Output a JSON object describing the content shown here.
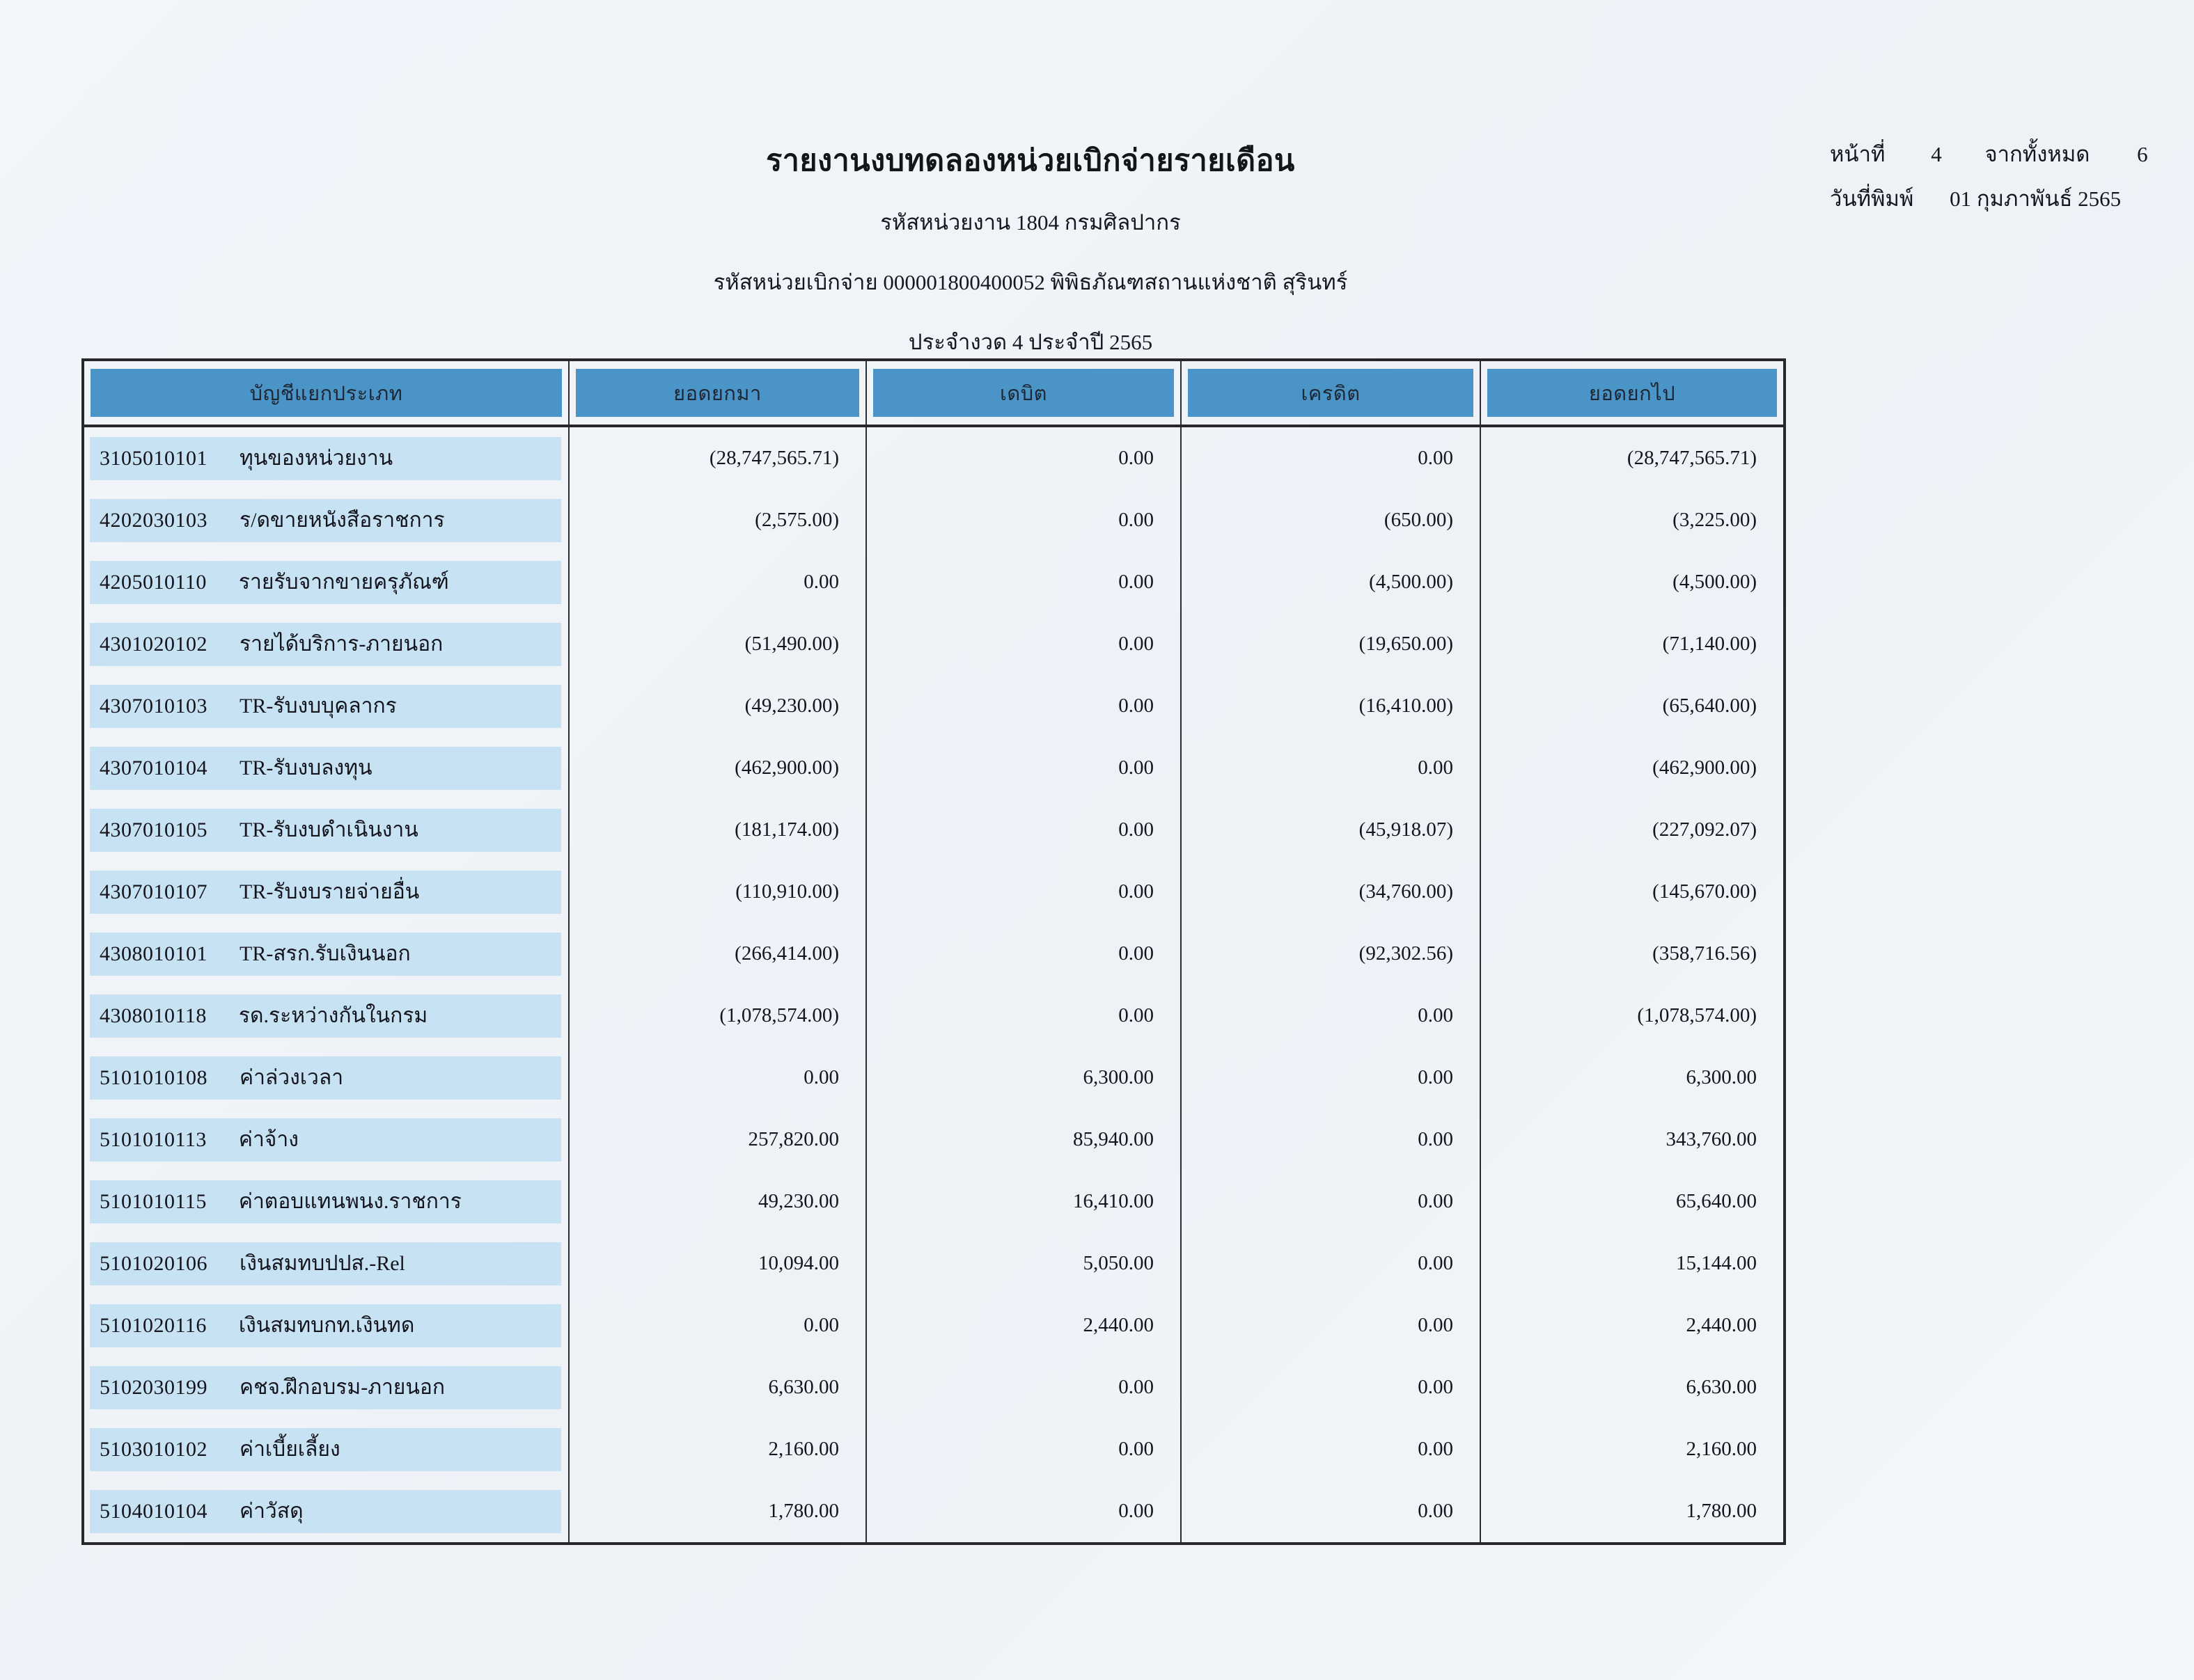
{
  "header": {
    "title": "รายงานงบทดลองหน่วยเบิกจ่ายรายเดือน",
    "agency_line": "รหัสหน่วยงาน 1804 กรมศิลปากร",
    "unit_line": "รหัสหน่วยเบิกจ่าย 000001800400052 พิพิธภัณฑสถานแห่งชาติ สุรินทร์",
    "period_line": "ประจำงวด 4 ประจำปี 2565"
  },
  "page_info": {
    "page_label": "หน้าที่",
    "page_number": "4",
    "total_label": "จากทั้งหมด",
    "total_pages": "6",
    "print_date_label": "วันที่พิมพ์",
    "print_date": "01 กุมภาพันธ์ 2565"
  },
  "table": {
    "columns": [
      "บัญชีแยกประเภท",
      "ยอดยกมา",
      "เดบิต",
      "เครดิต",
      "ยอดยกไป"
    ],
    "rows": [
      {
        "code": "3105010101",
        "name": "ทุนของหน่วยงาน",
        "brought_forward": "(28,747,565.71)",
        "debit": "0.00",
        "credit": "0.00",
        "carried_forward": "(28,747,565.71)"
      },
      {
        "code": "4202030103",
        "name": "ร/ดขายหนังสือราชการ",
        "brought_forward": "(2,575.00)",
        "debit": "0.00",
        "credit": "(650.00)",
        "carried_forward": "(3,225.00)"
      },
      {
        "code": "4205010110",
        "name": "รายรับจากขายครุภัณฑ์",
        "brought_forward": "0.00",
        "debit": "0.00",
        "credit": "(4,500.00)",
        "carried_forward": "(4,500.00)"
      },
      {
        "code": "4301020102",
        "name": "รายได้บริการ-ภายนอก",
        "brought_forward": "(51,490.00)",
        "debit": "0.00",
        "credit": "(19,650.00)",
        "carried_forward": "(71,140.00)"
      },
      {
        "code": "4307010103",
        "name": "TR-รับงบบุคลากร",
        "brought_forward": "(49,230.00)",
        "debit": "0.00",
        "credit": "(16,410.00)",
        "carried_forward": "(65,640.00)"
      },
      {
        "code": "4307010104",
        "name": "TR-รับงบลงทุน",
        "brought_forward": "(462,900.00)",
        "debit": "0.00",
        "credit": "0.00",
        "carried_forward": "(462,900.00)"
      },
      {
        "code": "4307010105",
        "name": "TR-รับงบดำเนินงาน",
        "brought_forward": "(181,174.00)",
        "debit": "0.00",
        "credit": "(45,918.07)",
        "carried_forward": "(227,092.07)"
      },
      {
        "code": "4307010107",
        "name": "TR-รับงบรายจ่ายอื่น",
        "brought_forward": "(110,910.00)",
        "debit": "0.00",
        "credit": "(34,760.00)",
        "carried_forward": "(145,670.00)"
      },
      {
        "code": "4308010101",
        "name": "TR-สรก.รับเงินนอก",
        "brought_forward": "(266,414.00)",
        "debit": "0.00",
        "credit": "(92,302.56)",
        "carried_forward": "(358,716.56)"
      },
      {
        "code": "4308010118",
        "name": "รด.ระหว่างกันในกรม",
        "brought_forward": "(1,078,574.00)",
        "debit": "0.00",
        "credit": "0.00",
        "carried_forward": "(1,078,574.00)"
      },
      {
        "code": "5101010108",
        "name": "ค่าล่วงเวลา",
        "brought_forward": "0.00",
        "debit": "6,300.00",
        "credit": "0.00",
        "carried_forward": "6,300.00"
      },
      {
        "code": "5101010113",
        "name": "ค่าจ้าง",
        "brought_forward": "257,820.00",
        "debit": "85,940.00",
        "credit": "0.00",
        "carried_forward": "343,760.00"
      },
      {
        "code": "5101010115",
        "name": "ค่าตอบแทนพนง.ราชการ",
        "brought_forward": "49,230.00",
        "debit": "16,410.00",
        "credit": "0.00",
        "carried_forward": "65,640.00"
      },
      {
        "code": "5101020106",
        "name": "เงินสมทบปปส.-Rel",
        "brought_forward": "10,094.00",
        "debit": "5,050.00",
        "credit": "0.00",
        "carried_forward": "15,144.00"
      },
      {
        "code": "5101020116",
        "name": "เงินสมทบกท.เงินทด",
        "brought_forward": "0.00",
        "debit": "2,440.00",
        "credit": "0.00",
        "carried_forward": "2,440.00"
      },
      {
        "code": "5102030199",
        "name": "คชจ.ฝึกอบรม-ภายนอก",
        "brought_forward": "6,630.00",
        "debit": "0.00",
        "credit": "0.00",
        "carried_forward": "6,630.00"
      },
      {
        "code": "5103010102",
        "name": "ค่าเบี้ยเลี้ยง",
        "brought_forward": "2,160.00",
        "debit": "0.00",
        "credit": "0.00",
        "carried_forward": "2,160.00"
      },
      {
        "code": "5104010104",
        "name": "ค่าวัสดุ",
        "brought_forward": "1,780.00",
        "debit": "0.00",
        "credit": "0.00",
        "carried_forward": "1,780.00"
      }
    ]
  },
  "colors": {
    "header_bar": "#4a94c8",
    "row_bar": "#c7e2f3"
  }
}
